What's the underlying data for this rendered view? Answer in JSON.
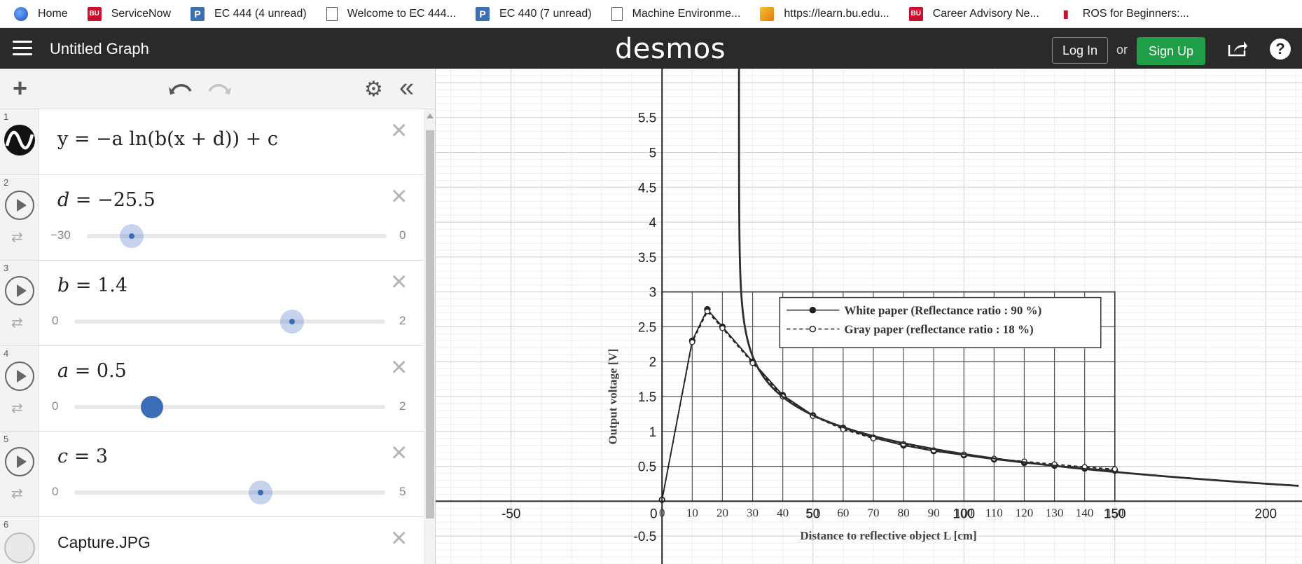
{
  "bookmarks": [
    {
      "label": "Home",
      "icon": "globe-icon"
    },
    {
      "label": "ServiceNow",
      "icon": "bu-icon"
    },
    {
      "label": "EC 444 (4 unread)",
      "icon": "piazza-icon"
    },
    {
      "label": "Welcome to EC 444...",
      "icon": "document-icon"
    },
    {
      "label": "EC 440 (7 unread)",
      "icon": "piazza-icon"
    },
    {
      "label": "Machine Environme...",
      "icon": "document-icon"
    },
    {
      "label": "https://learn.bu.edu...",
      "icon": "pencil-icon"
    },
    {
      "label": "Career Advisory Ne...",
      "icon": "bu-icon"
    },
    {
      "label": "ROS for Beginners:...",
      "icon": "ros-icon"
    }
  ],
  "bookmark_icon_text": {
    "bu": "BU",
    "piazza": "P"
  },
  "header": {
    "title": "Untitled Graph",
    "logo": "desmos",
    "login_label": "Log In",
    "or_text": "or",
    "signup_label": "Sign Up",
    "help_label": "?"
  },
  "toolbar": {
    "add_label": "+",
    "settings_glyph": "⚙",
    "collapse_glyph": "«"
  },
  "close_glyph": "×",
  "expressions": [
    {
      "num": "1",
      "latex": "y = −a ln(b(x + d)) + c"
    },
    {
      "num": "2",
      "var": "d",
      "value": "−25.5",
      "min": "−30",
      "max": "0"
    },
    {
      "num": "3",
      "var": "b",
      "value": "1.4",
      "min": "0",
      "max": "2"
    },
    {
      "num": "4",
      "var": "a",
      "value": "0.5",
      "min": "0",
      "max": "2"
    },
    {
      "num": "5",
      "var": "c",
      "value": "3",
      "min": "0",
      "max": "5"
    },
    {
      "num": "6",
      "label": "Capture.JPG"
    }
  ],
  "chart_data": {
    "type": "line",
    "function": "y = -0.5 ln(1.4(x - 25.5)) + 3",
    "x_tick_labels": [
      "-50",
      "0",
      "50",
      "100",
      "150",
      "200"
    ],
    "y_tick_labels": [
      "-0.5",
      "0",
      "0.5",
      "1",
      "1.5",
      "2",
      "2.5",
      "3",
      "3.5",
      "4",
      "4.5",
      "5",
      "5.5"
    ],
    "xlim": [
      -75,
      212
    ],
    "ylim": [
      -0.9,
      6.2
    ],
    "grid": true,
    "image_overlay": {
      "xlabel": "Distance to reflective object L [cm]",
      "ylabel": "Output voltage [V]",
      "x_tick_labels": [
        "0",
        "10",
        "20",
        "30",
        "40",
        "50",
        "60",
        "70",
        "80",
        "90",
        "100",
        "110",
        "120",
        "130",
        "140",
        "150"
      ],
      "legend": [
        "White paper (Reflectance ratio : 90 %)",
        "Gray paper (reflectance ratio : 18 %)"
      ],
      "series": [
        {
          "name": "White paper (Reflectance ratio : 90 %)",
          "x": [
            0,
            10,
            15,
            20,
            30,
            40,
            50,
            60,
            70,
            80,
            90,
            100,
            110,
            120,
            130,
            140,
            150
          ],
          "y": [
            0.02,
            2.3,
            2.75,
            2.5,
            2.0,
            1.52,
            1.23,
            1.05,
            0.91,
            0.8,
            0.72,
            0.66,
            0.6,
            0.55,
            0.51,
            0.47,
            0.44
          ]
        },
        {
          "name": "Gray paper (reflectance ratio : 18 %)",
          "x": [
            0,
            10,
            15,
            20,
            30,
            40,
            50,
            60,
            70,
            80,
            90,
            100,
            110,
            120,
            130,
            140,
            150
          ],
          "y": [
            0.02,
            2.28,
            2.72,
            2.48,
            1.98,
            1.5,
            1.22,
            1.03,
            0.9,
            0.82,
            0.73,
            0.67,
            0.61,
            0.57,
            0.53,
            0.49,
            0.46
          ]
        }
      ]
    }
  }
}
